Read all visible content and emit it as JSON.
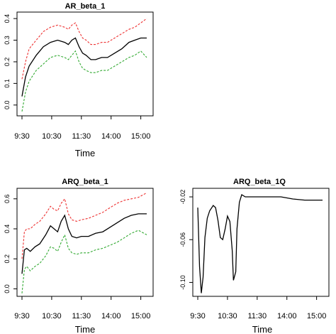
{
  "chart_data": [
    {
      "type": "line",
      "title": "AR_beta_1",
      "xlabel": "Time",
      "ylabel": "",
      "x_ticks": [
        "9:30",
        "10:30",
        "11:30",
        "14:00",
        "15:00"
      ],
      "y_ticks": [
        "0.0",
        "0.1",
        "0.2",
        "0.3",
        "0.4"
      ],
      "ylim": [
        -0.05,
        0.43
      ],
      "legend": "none",
      "series": [
        {
          "color": "#000000",
          "style": "solid",
          "values": [
            [
              0,
              0.04
            ],
            [
              0.03,
              0.13
            ],
            [
              0.06,
              0.18
            ],
            [
              0.12,
              0.23
            ],
            [
              0.18,
              0.27
            ],
            [
              0.24,
              0.29
            ],
            [
              0.3,
              0.3
            ],
            [
              0.36,
              0.29
            ],
            [
              0.39,
              0.28
            ],
            [
              0.42,
              0.3
            ],
            [
              0.45,
              0.31
            ],
            [
              0.48,
              0.27
            ],
            [
              0.51,
              0.24
            ],
            [
              0.54,
              0.23
            ],
            [
              0.58,
              0.21
            ],
            [
              0.62,
              0.21
            ],
            [
              0.67,
              0.22
            ],
            [
              0.72,
              0.22
            ],
            [
              0.78,
              0.24
            ],
            [
              0.84,
              0.26
            ],
            [
              0.9,
              0.29
            ],
            [
              0.95,
              0.3
            ],
            [
              1.0,
              0.31
            ],
            [
              1.05,
              0.31
            ]
          ]
        },
        {
          "color": "#ee3333",
          "style": "dashed",
          "values": [
            [
              0,
              0.12
            ],
            [
              0.03,
              0.2
            ],
            [
              0.06,
              0.26
            ],
            [
              0.12,
              0.3
            ],
            [
              0.18,
              0.34
            ],
            [
              0.24,
              0.36
            ],
            [
              0.3,
              0.37
            ],
            [
              0.36,
              0.36
            ],
            [
              0.39,
              0.35
            ],
            [
              0.42,
              0.37
            ],
            [
              0.45,
              0.38
            ],
            [
              0.48,
              0.34
            ],
            [
              0.51,
              0.31
            ],
            [
              0.54,
              0.3
            ],
            [
              0.58,
              0.28
            ],
            [
              0.62,
              0.28
            ],
            [
              0.67,
              0.29
            ],
            [
              0.72,
              0.29
            ],
            [
              0.78,
              0.31
            ],
            [
              0.84,
              0.33
            ],
            [
              0.9,
              0.35
            ],
            [
              0.95,
              0.36
            ],
            [
              1.0,
              0.38
            ],
            [
              1.05,
              0.4
            ]
          ]
        },
        {
          "color": "#33aa33",
          "style": "dashed",
          "values": [
            [
              0,
              -0.03
            ],
            [
              0.03,
              0.06
            ],
            [
              0.06,
              0.11
            ],
            [
              0.12,
              0.16
            ],
            [
              0.18,
              0.19
            ],
            [
              0.24,
              0.22
            ],
            [
              0.3,
              0.23
            ],
            [
              0.36,
              0.22
            ],
            [
              0.39,
              0.21
            ],
            [
              0.42,
              0.23
            ],
            [
              0.45,
              0.25
            ],
            [
              0.48,
              0.2
            ],
            [
              0.51,
              0.17
            ],
            [
              0.54,
              0.16
            ],
            [
              0.58,
              0.15
            ],
            [
              0.62,
              0.15
            ],
            [
              0.67,
              0.16
            ],
            [
              0.72,
              0.16
            ],
            [
              0.78,
              0.18
            ],
            [
              0.84,
              0.2
            ],
            [
              0.9,
              0.22
            ],
            [
              0.95,
              0.23
            ],
            [
              1.0,
              0.25
            ],
            [
              1.05,
              0.22
            ]
          ]
        }
      ]
    },
    {
      "type": "line",
      "title": "ARQ_beta_1",
      "xlabel": "Time",
      "ylabel": "",
      "x_ticks": [
        "9:30",
        "10:30",
        "11:30",
        "14:00",
        "15:00"
      ],
      "y_ticks": [
        "0.0",
        "0.2",
        "0.4",
        "0.6"
      ],
      "ylim": [
        -0.05,
        0.67
      ],
      "legend": "none",
      "series": [
        {
          "color": "#000000",
          "style": "solid",
          "values": [
            [
              0,
              0.1
            ],
            [
              0.02,
              0.26
            ],
            [
              0.04,
              0.27
            ],
            [
              0.07,
              0.25
            ],
            [
              0.11,
              0.28
            ],
            [
              0.15,
              0.3
            ],
            [
              0.2,
              0.36
            ],
            [
              0.24,
              0.42
            ],
            [
              0.27,
              0.4
            ],
            [
              0.3,
              0.38
            ],
            [
              0.33,
              0.45
            ],
            [
              0.36,
              0.49
            ],
            [
              0.39,
              0.4
            ],
            [
              0.42,
              0.35
            ],
            [
              0.46,
              0.34
            ],
            [
              0.5,
              0.35
            ],
            [
              0.56,
              0.35
            ],
            [
              0.62,
              0.37
            ],
            [
              0.68,
              0.38
            ],
            [
              0.74,
              0.41
            ],
            [
              0.8,
              0.44
            ],
            [
              0.86,
              0.47
            ],
            [
              0.92,
              0.49
            ],
            [
              0.98,
              0.5
            ],
            [
              1.05,
              0.5
            ]
          ]
        },
        {
          "color": "#ee3333",
          "style": "dashed",
          "values": [
            [
              0,
              0.2
            ],
            [
              0.02,
              0.38
            ],
            [
              0.04,
              0.4
            ],
            [
              0.07,
              0.4
            ],
            [
              0.11,
              0.43
            ],
            [
              0.15,
              0.45
            ],
            [
              0.2,
              0.5
            ],
            [
              0.24,
              0.55
            ],
            [
              0.27,
              0.53
            ],
            [
              0.3,
              0.52
            ],
            [
              0.33,
              0.57
            ],
            [
              0.36,
              0.6
            ],
            [
              0.39,
              0.5
            ],
            [
              0.42,
              0.46
            ],
            [
              0.46,
              0.45
            ],
            [
              0.5,
              0.46
            ],
            [
              0.56,
              0.47
            ],
            [
              0.62,
              0.49
            ],
            [
              0.68,
              0.51
            ],
            [
              0.74,
              0.54
            ],
            [
              0.8,
              0.57
            ],
            [
              0.86,
              0.59
            ],
            [
              0.92,
              0.6
            ],
            [
              0.98,
              0.61
            ],
            [
              1.05,
              0.64
            ]
          ]
        },
        {
          "color": "#33aa33",
          "style": "dashed",
          "values": [
            [
              0,
              -0.03
            ],
            [
              0.02,
              0.13
            ],
            [
              0.04,
              0.15
            ],
            [
              0.07,
              0.12
            ],
            [
              0.11,
              0.15
            ],
            [
              0.15,
              0.17
            ],
            [
              0.2,
              0.22
            ],
            [
              0.24,
              0.28
            ],
            [
              0.27,
              0.27
            ],
            [
              0.3,
              0.25
            ],
            [
              0.33,
              0.31
            ],
            [
              0.36,
              0.36
            ],
            [
              0.39,
              0.27
            ],
            [
              0.42,
              0.24
            ],
            [
              0.46,
              0.23
            ],
            [
              0.5,
              0.24
            ],
            [
              0.56,
              0.24
            ],
            [
              0.62,
              0.26
            ],
            [
              0.68,
              0.27
            ],
            [
              0.74,
              0.29
            ],
            [
              0.8,
              0.31
            ],
            [
              0.86,
              0.34
            ],
            [
              0.92,
              0.37
            ],
            [
              0.98,
              0.39
            ],
            [
              1.05,
              0.36
            ]
          ]
        }
      ]
    },
    {
      "type": "line",
      "title": "ARQ_beta_1Q",
      "xlabel": "Time",
      "ylabel": "",
      "x_ticks": [
        "9:30",
        "10:30",
        "11:30",
        "14:00",
        "15:00"
      ],
      "y_ticks": [
        "-0.10",
        "-0.06",
        "-0.02"
      ],
      "ylim": [
        -0.113,
        -0.012
      ],
      "legend": "none",
      "series": [
        {
          "color": "#000000",
          "style": "solid",
          "values": [
            [
              0,
              -0.03
            ],
            [
              0.015,
              -0.085
            ],
            [
              0.03,
              -0.11
            ],
            [
              0.045,
              -0.095
            ],
            [
              0.06,
              -0.058
            ],
            [
              0.08,
              -0.04
            ],
            [
              0.1,
              -0.033
            ],
            [
              0.13,
              -0.028
            ],
            [
              0.15,
              -0.03
            ],
            [
              0.17,
              -0.042
            ],
            [
              0.19,
              -0.058
            ],
            [
              0.21,
              -0.06
            ],
            [
              0.23,
              -0.05
            ],
            [
              0.25,
              -0.038
            ],
            [
              0.27,
              -0.043
            ],
            [
              0.29,
              -0.07
            ],
            [
              0.3,
              -0.098
            ],
            [
              0.32,
              -0.09
            ],
            [
              0.33,
              -0.05
            ],
            [
              0.35,
              -0.025
            ],
            [
              0.37,
              -0.018
            ],
            [
              0.4,
              -0.02
            ],
            [
              0.45,
              -0.02
            ],
            [
              0.5,
              -0.02
            ],
            [
              0.6,
              -0.02
            ],
            [
              0.7,
              -0.02
            ],
            [
              0.8,
              -0.022
            ],
            [
              0.9,
              -0.023
            ],
            [
              1.0,
              -0.023
            ],
            [
              1.05,
              -0.023
            ]
          ]
        }
      ]
    }
  ]
}
